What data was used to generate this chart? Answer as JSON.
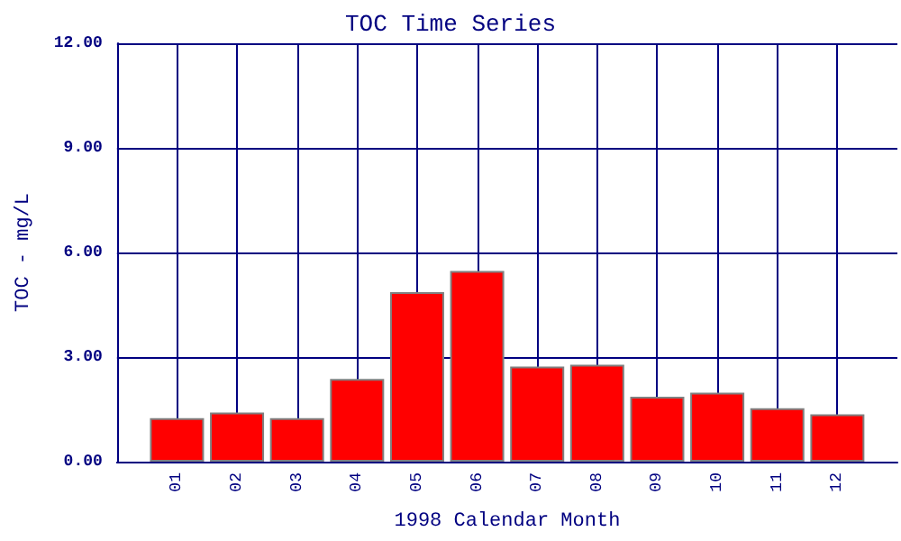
{
  "chart_data": {
    "type": "bar",
    "title": "TOC Time Series",
    "xlabel": "1998 Calendar Month",
    "ylabel": "TOC - mg/L",
    "categories": [
      "01",
      "02",
      "03",
      "04",
      "05",
      "06",
      "07",
      "08",
      "09",
      "10",
      "11",
      "12"
    ],
    "values": [
      1.25,
      1.41,
      1.25,
      2.37,
      4.86,
      5.47,
      2.73,
      2.78,
      1.86,
      1.98,
      1.53,
      1.36
    ],
    "color": "#ff0000",
    "ylim": [
      0,
      12
    ],
    "yticks": [
      {
        "value": 0,
        "label": "0.00"
      },
      {
        "value": 3,
        "label": "3.00"
      },
      {
        "value": 6,
        "label": "6.00"
      },
      {
        "value": 9,
        "label": "9.00"
      },
      {
        "value": 12,
        "label": "12.00"
      }
    ],
    "grid": true
  }
}
